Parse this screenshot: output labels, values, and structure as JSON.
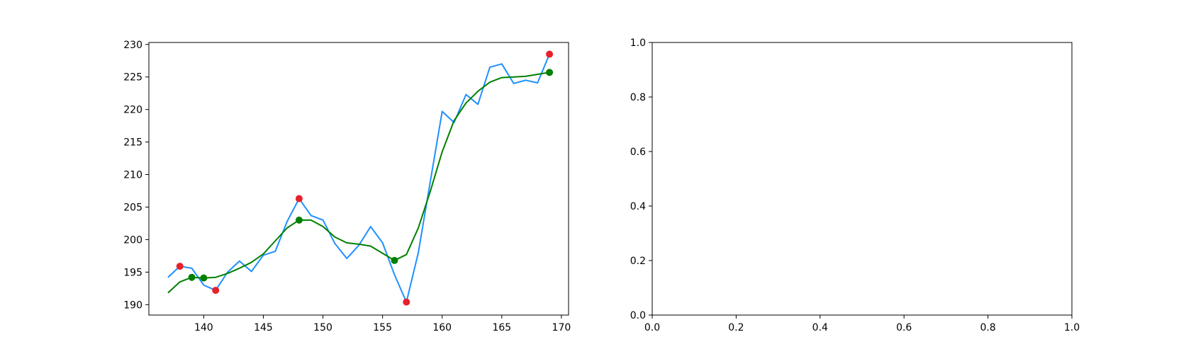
{
  "chart_data": [
    {
      "type": "line",
      "title": "",
      "xlabel": "",
      "ylabel": "",
      "xlim": [
        135.4,
        170.6
      ],
      "ylim": [
        188.4,
        230.3
      ],
      "grid": false,
      "x_ticks": [
        140,
        145,
        150,
        155,
        160,
        165,
        170
      ],
      "y_ticks": [
        190,
        195,
        200,
        205,
        210,
        215,
        220,
        225,
        230
      ],
      "series": [
        {
          "color": "#1e90ff",
          "x": [
            137,
            138,
            139,
            140,
            141,
            142,
            143,
            144,
            145,
            146,
            147,
            148,
            149,
            150,
            151,
            152,
            153,
            154,
            155,
            156,
            157,
            158,
            159,
            160,
            161,
            162,
            163,
            164,
            165,
            166,
            167,
            168,
            169
          ],
          "y": [
            194.2,
            195.9,
            195.6,
            193.0,
            192.2,
            195.0,
            196.7,
            195.1,
            197.6,
            198.2,
            202.8,
            206.3,
            203.7,
            203.0,
            199.4,
            197.1,
            199.1,
            202.0,
            199.5,
            194.6,
            190.4,
            198.0,
            208.9,
            219.7,
            218.0,
            222.3,
            220.8,
            226.5,
            227.0,
            224.0,
            224.5,
            224.1,
            228.5
          ]
        },
        {
          "color": "#008000",
          "x": [
            137,
            138,
            139,
            140,
            141,
            142,
            143,
            144,
            145,
            146,
            147,
            148,
            149,
            150,
            151,
            152,
            153,
            154,
            155,
            156,
            157,
            158,
            159,
            160,
            161,
            162,
            163,
            164,
            165,
            166,
            167,
            168,
            169
          ],
          "y": [
            191.8,
            193.5,
            194.2,
            194.1,
            194.2,
            194.8,
            195.6,
            196.5,
            197.8,
            199.8,
            201.8,
            203.0,
            203.0,
            202.0,
            200.4,
            199.5,
            199.3,
            199.0,
            197.9,
            196.8,
            197.7,
            201.8,
            207.4,
            213.5,
            218.3,
            221.0,
            222.8,
            224.2,
            224.9,
            225.0,
            225.1,
            225.4,
            225.7
          ]
        }
      ],
      "markers": [
        {
          "color": "#e8202a",
          "x": [
            138,
            141,
            148,
            157,
            169
          ],
          "y": [
            195.9,
            192.2,
            206.3,
            190.4,
            228.5
          ]
        },
        {
          "color": "#008000",
          "x": [
            139,
            140,
            148,
            156,
            169
          ],
          "y": [
            194.2,
            194.1,
            203.0,
            196.8,
            225.7
          ]
        }
      ]
    },
    {
      "type": "line",
      "title": "",
      "xlabel": "",
      "ylabel": "",
      "xlim": [
        0,
        1
      ],
      "ylim": [
        0,
        1
      ],
      "grid": false,
      "x_ticks": [
        0.0,
        0.2,
        0.4,
        0.6,
        0.8,
        1.0
      ],
      "y_ticks": [
        0.0,
        0.2,
        0.4,
        0.6,
        0.8,
        1.0
      ],
      "series": []
    }
  ]
}
